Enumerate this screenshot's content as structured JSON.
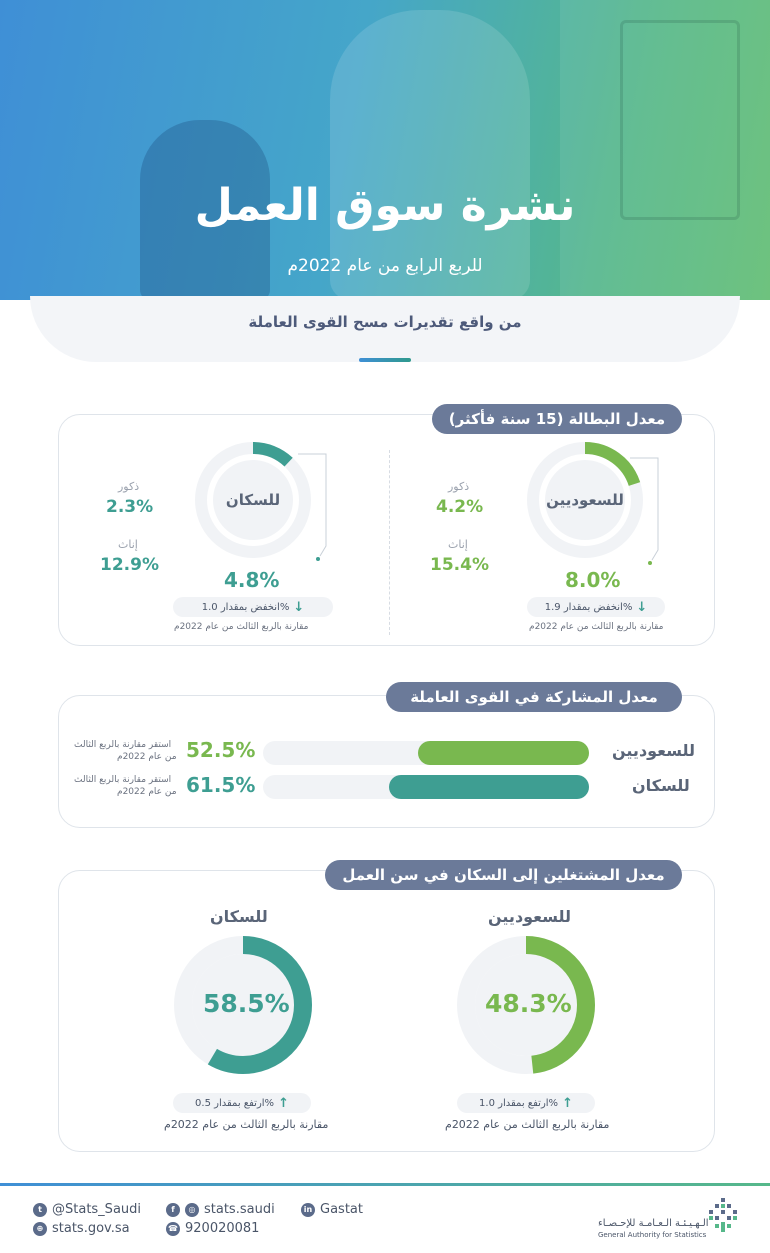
{
  "header": {
    "title": "نشرة سوق العمل",
    "subtitle": "للربع الرابع من عام 2022م",
    "band_text": "من واقع تقديرات مسح القوى العاملة"
  },
  "unemployment": {
    "title": "معدل البطالة (15 سنة فأكثر)",
    "saudis": {
      "ring_label": "للسعوديين",
      "rate": "8.0%",
      "rate_value": 8.0,
      "males_label": "ذكور",
      "males": "4.2%",
      "females_label": "إناث",
      "females": "15.4%",
      "change": "انخفض بمقدار 1.9%",
      "compare": "مقارنة بالربع الثالث من عام 2022م"
    },
    "population": {
      "ring_label": "للسكان",
      "rate": "4.8%",
      "rate_value": 4.8,
      "males_label": "ذكور",
      "males": "2.3%",
      "females_label": "إناث",
      "females": "12.9%",
      "change": "انخفض بمقدار 1.0%",
      "compare": "مقارنة بالربع الثالث من عام 2022م"
    }
  },
  "participation": {
    "title": "معدل المشاركة في القوى العاملة",
    "rows": [
      {
        "label": "للسعوديين",
        "value": "52.5%",
        "fill": 0.525,
        "note1": "استقر مقارنة بالربع الثالث",
        "note2": "من عام 2022م",
        "color": "#79b84f"
      },
      {
        "label": "للسكان",
        "value": "61.5%",
        "fill": 0.615,
        "note1": "استقر مقارنة بالربع الثالث",
        "note2": "من عام 2022م",
        "color": "#3e9e92"
      }
    ]
  },
  "employment": {
    "title": "معدل المشتغلين إلى السكان في سن العمل",
    "saudis": {
      "label": "للسعوديين",
      "value": "48.3%",
      "fill": 0.483,
      "change": "ارتفع بمقدار 1.0%",
      "compare": "مقارنة بالربع الثالث من عام 2022م"
    },
    "population": {
      "label": "للسكان",
      "value": "58.5%",
      "fill": 0.585,
      "change": "ارتفع بمقدار 0.5%",
      "compare": "مقارنة بالربع الثالث من عام 2022م"
    }
  },
  "footer": {
    "twitter": "@Stats_Saudi",
    "website": "stats.gov.sa",
    "social": "stats.saudi",
    "phone": "920020081",
    "linkedin": "Gastat",
    "org_ar": "الـهـيـئـة الـعـامـة للإحـصـاء",
    "org_en": "General Authority for Statistics"
  },
  "colors": {
    "green": "#79b84f",
    "teal": "#3e9e92",
    "pill": "#6b7a99"
  }
}
